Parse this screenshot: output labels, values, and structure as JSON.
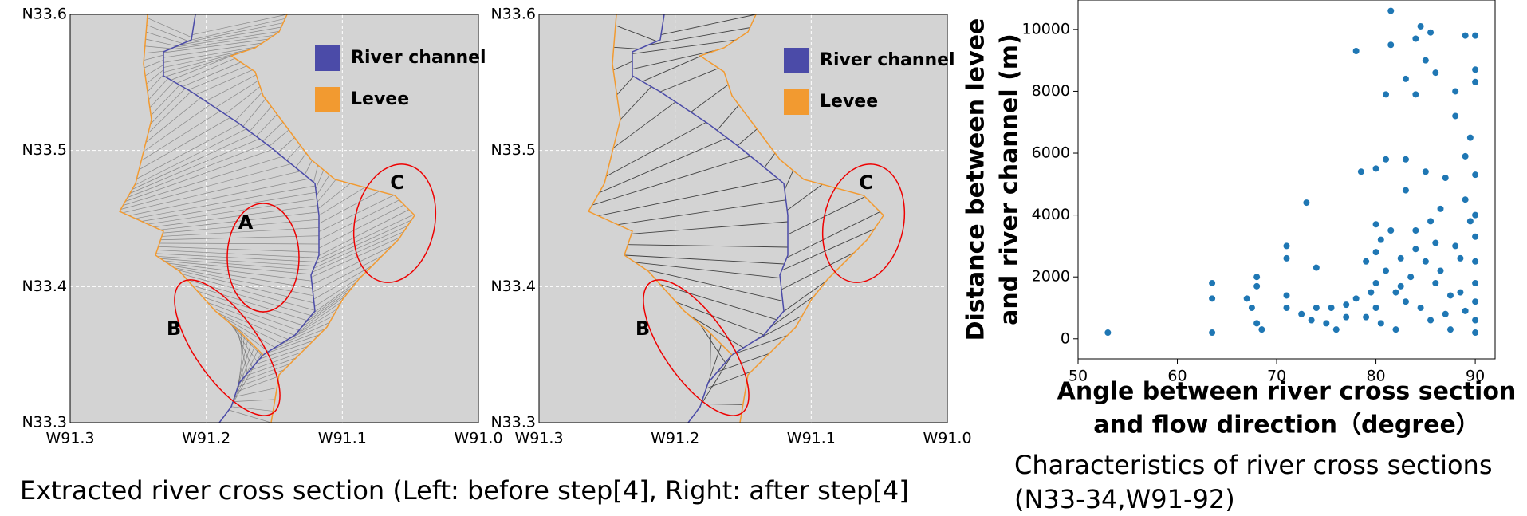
{
  "chart_data": [
    {
      "type": "map",
      "xlim": [
        -91.3,
        -91.0
      ],
      "ylim": [
        33.3,
        33.6
      ],
      "xticks": [
        {
          "value": -91.3,
          "label": "W91.3"
        },
        {
          "value": -91.2,
          "label": "W91.2"
        },
        {
          "value": -91.1,
          "label": "W91.1"
        },
        {
          "value": -91.0,
          "label": "W91.0"
        }
      ],
      "yticks": [
        {
          "value": 33.3,
          "label": "N33.3"
        },
        {
          "value": 33.4,
          "label": "N33.4"
        },
        {
          "value": 33.5,
          "label": "N33.5"
        },
        {
          "value": 33.6,
          "label": "N33.6"
        }
      ],
      "grid": true,
      "series": [
        {
          "name": "River channel",
          "color": "#4b4ba8"
        },
        {
          "name": "Levee",
          "color": "#f29a30"
        }
      ],
      "annotations": [
        "A",
        "B",
        "C"
      ]
    },
    {
      "type": "map",
      "xlim": [
        -91.3,
        -91.0
      ],
      "ylim": [
        33.3,
        33.6
      ],
      "xticks": [
        {
          "value": -91.3,
          "label": "W91.3"
        },
        {
          "value": -91.2,
          "label": "W91.2"
        },
        {
          "value": -91.1,
          "label": "W91.1"
        },
        {
          "value": -91.0,
          "label": "W91.0"
        }
      ],
      "yticks": [
        {
          "value": 33.3,
          "label": "N33.3"
        },
        {
          "value": 33.4,
          "label": "N33.4"
        },
        {
          "value": 33.5,
          "label": "N33.5"
        },
        {
          "value": 33.6,
          "label": "N33.6"
        }
      ],
      "grid": true,
      "series": [
        {
          "name": "River channel",
          "color": "#4b4ba8"
        },
        {
          "name": "Levee",
          "color": "#f29a30"
        }
      ],
      "annotations": [
        "B",
        "C"
      ]
    },
    {
      "type": "scatter",
      "color": "#1f77b4",
      "xlabel": [
        "Angle between river cross section",
        "and flow direction（degree）"
      ],
      "ylabel": [
        "Distance between levee",
        "and river channel (m)"
      ],
      "xlim": [
        50,
        92
      ],
      "ylim": [
        -650,
        10950
      ],
      "xticks": [
        50,
        60,
        70,
        80,
        90
      ],
      "yticks": [
        0,
        2000,
        4000,
        6000,
        8000,
        10000
      ],
      "x": [
        53,
        63.5,
        63.5,
        63.5,
        67,
        67.5,
        68,
        68,
        68,
        68.5,
        71,
        71,
        71,
        71,
        72.5,
        73,
        73.5,
        74,
        74,
        75,
        75.5,
        76,
        77,
        77,
        78,
        78,
        78.5,
        79,
        79,
        79.5,
        80,
        80,
        80,
        80,
        80,
        80.5,
        80.5,
        81,
        81,
        81,
        81.5,
        81.5,
        81.5,
        82,
        82,
        82.5,
        83,
        83,
        83,
        83,
        83.5,
        84,
        84,
        84,
        84.5,
        84.5,
        85,
        85,
        85,
        85.5,
        85.5,
        86,
        86,
        86,
        86.5,
        87,
        87,
        87.5,
        88,
        88,
        88,
        88.5,
        88.5,
        89,
        89,
        89,
        89,
        89.5,
        89.5,
        90,
        90,
        90,
        90,
        90,
        90,
        90,
        90,
        90,
        90,
        90,
        87.5,
        86.5,
        85.5,
        84,
        82.5
      ],
      "values": [
        200,
        1800,
        1300,
        200,
        1300,
        1000,
        2000,
        1700,
        500,
        300,
        2600,
        3000,
        1400,
        1000,
        800,
        4400,
        600,
        2300,
        1000,
        500,
        1000,
        300,
        1100,
        700,
        1300,
        9300,
        5400,
        2500,
        700,
        1500,
        3700,
        2800,
        1800,
        1000,
        5500,
        3200,
        500,
        2200,
        7900,
        5800,
        10600,
        9500,
        3500,
        1500,
        300,
        2600,
        4800,
        8400,
        1200,
        5800,
        2000,
        9700,
        7900,
        3500,
        1000,
        10100,
        9000,
        2500,
        5400,
        9900,
        600,
        1800,
        3100,
        8600,
        2200,
        5200,
        800,
        1400,
        8000,
        7200,
        3000,
        2600,
        1500,
        5900,
        9800,
        4500,
        900,
        3800,
        6500,
        9800,
        8700,
        8300,
        5300,
        4000,
        3300,
        2500,
        1800,
        1200,
        600,
        200,
        300,
        4200,
        3800,
        2900,
        1700
      ]
    }
  ],
  "captions": [
    "Extracted river cross section (Left: before step[4], Right: after step[4]",
    "Characteristics of river cross sections",
    "(N33-34,W91-92)"
  ]
}
